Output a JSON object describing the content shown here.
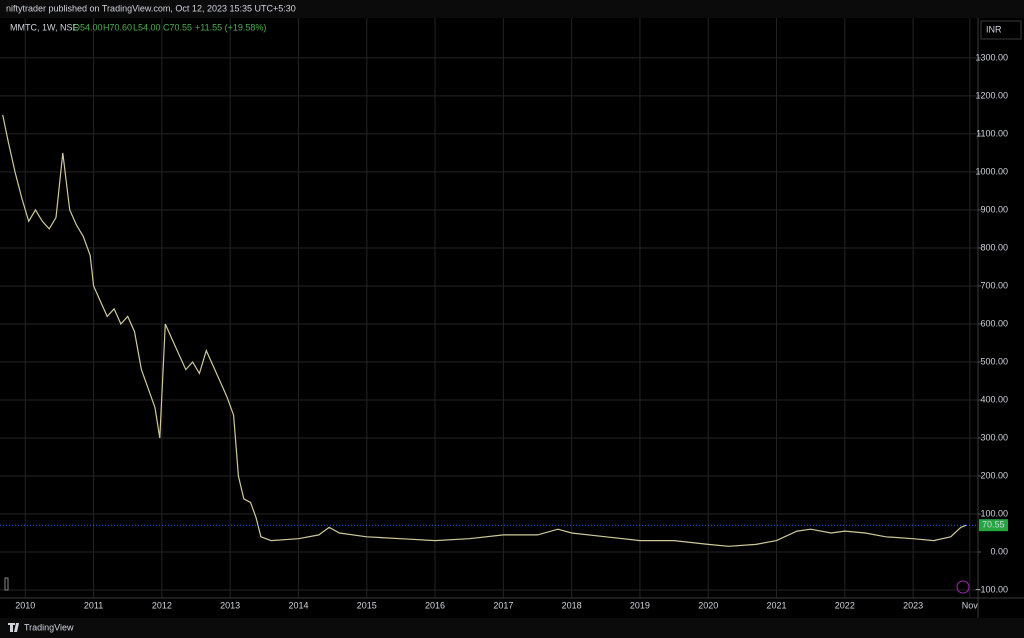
{
  "header": "niftytrader published on TradingView.com, Oct 12, 2023 15:35 UTC+5:30",
  "footer": "TradingView",
  "chart_data": {
    "type": "line",
    "legend": {
      "symbol": "MMTC, 1W, NSE",
      "open": "O54.00",
      "high": "H70.60",
      "low": "L54.00",
      "close": "C70.55",
      "change": "+11.55 (+19.58%)"
    },
    "currency": "INR",
    "last_price": 70.55,
    "grid": true,
    "x": [
      2009.67,
      2009.75,
      2009.85,
      2009.95,
      2010.05,
      2010.15,
      2010.25,
      2010.35,
      2010.45,
      2010.55,
      2010.65,
      2010.75,
      2010.85,
      2010.95,
      2011.0,
      2011.1,
      2011.2,
      2011.3,
      2011.4,
      2011.5,
      2011.6,
      2011.7,
      2011.8,
      2011.9,
      2011.97,
      2012.05,
      2012.15,
      2012.25,
      2012.35,
      2012.45,
      2012.55,
      2012.65,
      2012.75,
      2012.85,
      2012.95,
      2013.05,
      2013.12,
      2013.2,
      2013.3,
      2013.38,
      2013.45,
      2013.6,
      2014.0,
      2014.3,
      2014.45,
      2014.6,
      2015.0,
      2015.5,
      2016.0,
      2016.5,
      2017.0,
      2017.5,
      2017.8,
      2018.0,
      2018.5,
      2019.0,
      2019.5,
      2020.0,
      2020.3,
      2020.7,
      2021.0,
      2021.3,
      2021.5,
      2021.8,
      2022.0,
      2022.3,
      2022.6,
      2023.0,
      2023.3,
      2023.55,
      2023.7,
      2023.78
    ],
    "series": [
      {
        "name": "MMTC",
        "color": "#cfc99a",
        "values": [
          1150,
          1080,
          1000,
          930,
          870,
          900,
          870,
          850,
          880,
          1050,
          900,
          860,
          830,
          780,
          700,
          660,
          620,
          640,
          600,
          620,
          580,
          480,
          430,
          380,
          300,
          600,
          560,
          520,
          480,
          500,
          470,
          530,
          490,
          450,
          410,
          360,
          200,
          140,
          130,
          90,
          40,
          30,
          35,
          45,
          65,
          50,
          40,
          35,
          30,
          35,
          45,
          45,
          60,
          50,
          40,
          30,
          30,
          20,
          15,
          20,
          30,
          55,
          60,
          50,
          55,
          50,
          40,
          35,
          30,
          40,
          65,
          70.55
        ]
      }
    ],
    "xlim": [
      2009.63,
      2023.95
    ],
    "xticks": [
      2010,
      2011,
      2012,
      2013,
      2014,
      2015,
      2016,
      2017,
      2018,
      2019,
      2020,
      2021,
      2022,
      2023,
      {
        "value": 2023.83,
        "label": "Nov"
      }
    ],
    "ylim": [
      -121,
      1405
    ],
    "yticks": [
      {
        "value": 1300,
        "label": "1300.00"
      },
      {
        "value": 1200,
        "label": "1200.00"
      },
      {
        "value": 1100,
        "label": "1100.00"
      },
      {
        "value": 1000,
        "label": "1000.00"
      },
      {
        "value": 900,
        "label": "900.00"
      },
      {
        "value": 800,
        "label": "800.00"
      },
      {
        "value": 700,
        "label": "700.00"
      },
      {
        "value": 600,
        "label": "600.00"
      },
      {
        "value": 500,
        "label": "500.00"
      },
      {
        "value": 400,
        "label": "400.00"
      },
      {
        "value": 300,
        "label": "300.00"
      },
      {
        "value": 200,
        "label": "200.00"
      },
      {
        "value": 100,
        "label": "100.00"
      },
      {
        "value": 0,
        "label": "0.00"
      },
      {
        "value": -100,
        "label": "−100.00"
      }
    ]
  }
}
